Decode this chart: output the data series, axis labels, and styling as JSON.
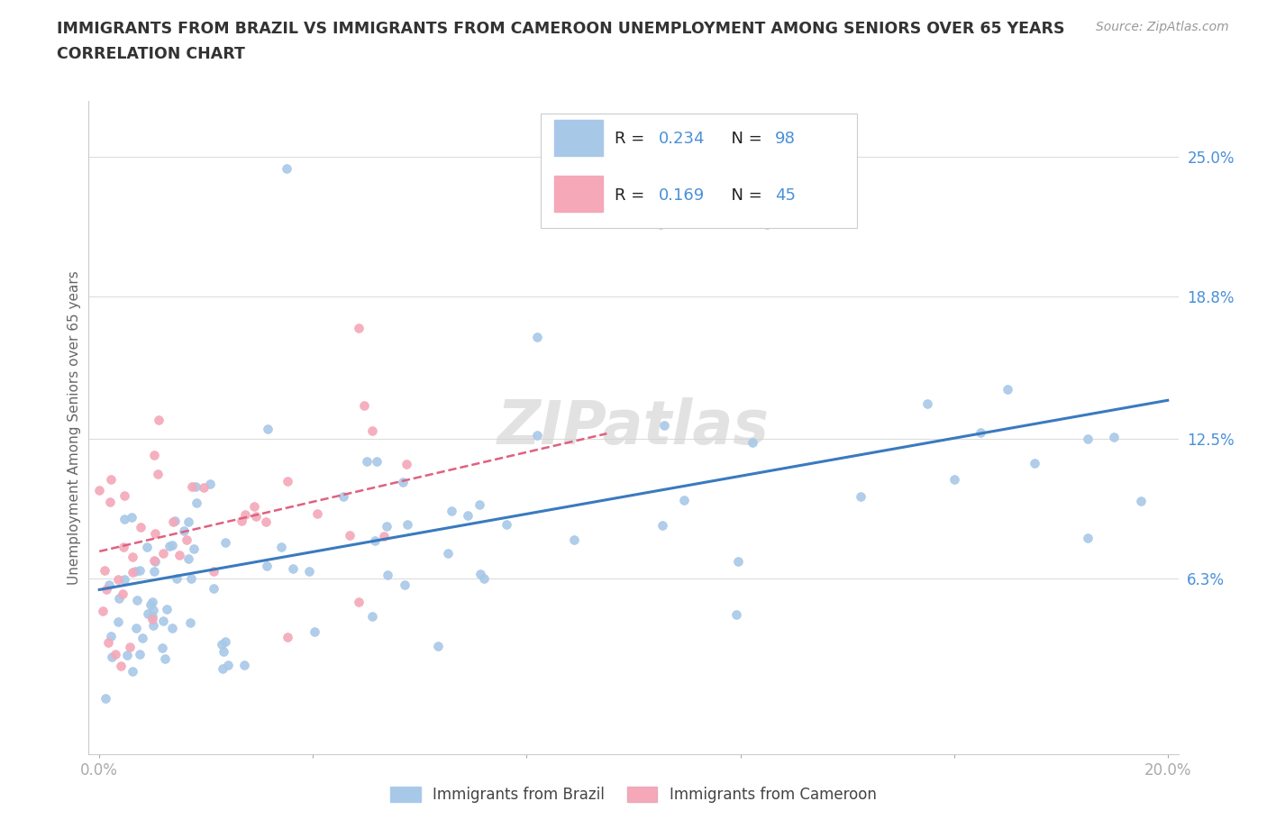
{
  "title_line1": "IMMIGRANTS FROM BRAZIL VS IMMIGRANTS FROM CAMEROON UNEMPLOYMENT AMONG SENIORS OVER 65 YEARS",
  "title_line2": "CORRELATION CHART",
  "source_text": "Source: ZipAtlas.com",
  "ylabel": "Unemployment Among Seniors over 65 years",
  "xlim": [
    -0.002,
    0.202
  ],
  "ylim": [
    -0.015,
    0.275
  ],
  "ytick_vals": [
    0.063,
    0.125,
    0.188,
    0.25
  ],
  "ytick_labels": [
    "6.3%",
    "12.5%",
    "18.8%",
    "25.0%"
  ],
  "xtick_vals": [
    0.0,
    0.04,
    0.08,
    0.12,
    0.16,
    0.2
  ],
  "xtick_labels": [
    "0.0%",
    "",
    "",
    "",
    "",
    "20.0%"
  ],
  "brazil_color": "#a8c8e8",
  "cameroon_color": "#f4a8b8",
  "brazil_line_color": "#3a7abf",
  "cameroon_line_color": "#e06080",
  "axis_label_color": "#4a90d9",
  "text_color": "#333333",
  "source_color": "#999999",
  "R_brazil": 0.234,
  "N_brazil": 98,
  "R_cameroon": 0.169,
  "N_cameroon": 45,
  "watermark": "ZIPatlas",
  "legend_label1": "Immigrants from Brazil",
  "legend_label2": "Immigrants from Cameroon"
}
